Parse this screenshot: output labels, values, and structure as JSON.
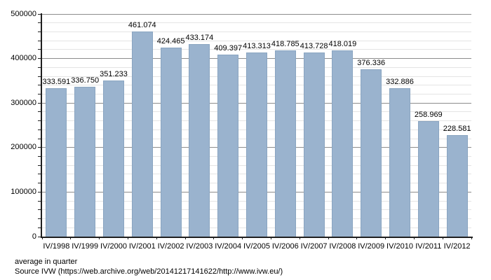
{
  "chart_data": {
    "type": "bar",
    "title": "",
    "xlabel": "",
    "ylabel": "",
    "categories": [
      "IV/1998",
      "IV/1999",
      "IV/2000",
      "IV/2001",
      "IV/2002",
      "IV/2003",
      "IV/2004",
      "IV/2005",
      "IV/2006",
      "IV/2007",
      "IV/2008",
      "IV/2009",
      "IV/2010",
      "IV/2011",
      "IV/2012"
    ],
    "values": [
      333591,
      336750,
      351233,
      461074,
      424465,
      433174,
      409397,
      413313,
      418785,
      413728,
      418019,
      376336,
      332886,
      258969,
      228581
    ],
    "value_labels": [
      "333.591",
      "336.750",
      "351.233",
      "461.074",
      "424.465",
      "433.174",
      "409.397",
      "413.313",
      "418.785",
      "413.728",
      "418.019",
      "376.336",
      "332.886",
      "258.969",
      "228.581"
    ],
    "ylim": [
      0,
      500000
    ],
    "y_major_step": 100000,
    "y_minor_step": 20000,
    "y_tick_labels": [
      "0",
      "100000",
      "200000",
      "300000",
      "400000",
      "500000"
    ],
    "grid": "on",
    "legend": "none"
  },
  "footer": {
    "note": "average in quarter",
    "source": "Source IVW (https://web.archive.org/web/20141217141622/http://www.ivw.eu/)"
  },
  "colors": {
    "bar_fill": "#9AB3CE",
    "bar_border": "#8AA5C1",
    "grid_major": "#8C8C8C",
    "grid_minor": "#E4E4E4",
    "axis": "#1F1F1F",
    "text": "#000000",
    "background": "#FFFFFF"
  }
}
